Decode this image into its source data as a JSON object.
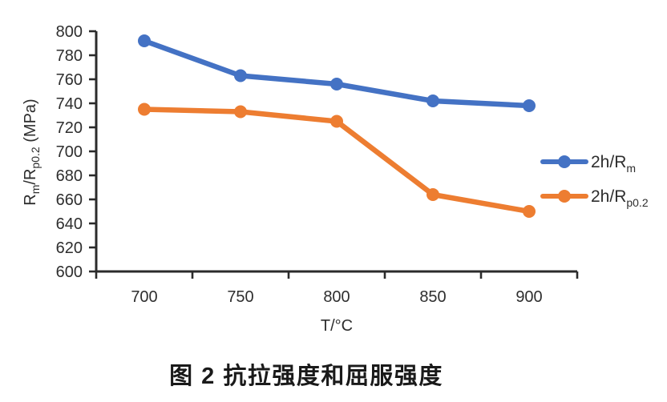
{
  "figure_caption": "图 2 抗拉强度和屈服强度",
  "chart_data": {
    "type": "line",
    "title": "图 2 抗拉强度和屈服强度",
    "xlabel": "T/°C",
    "ylabel": "Rm/Rp0.2 (MPa)",
    "ylabel_runs": [
      {
        "t": "R"
      },
      {
        "t": "m",
        "sub": true
      },
      {
        "t": "/R"
      },
      {
        "t": "p0.2",
        "sub": true
      },
      {
        "t": " (MPa)"
      }
    ],
    "x_categories": [
      700,
      750,
      800,
      850,
      900
    ],
    "x_tick_labels": [
      "700",
      "750",
      "800",
      "850",
      "900"
    ],
    "y_tick_labels": [
      "600",
      "620",
      "640",
      "660",
      "680",
      "700",
      "720",
      "740",
      "760",
      "780",
      "800"
    ],
    "ylim": [
      600,
      800
    ],
    "ytick_step": 20,
    "grid": false,
    "axis_color": "#2b2b2b",
    "tick_label_color": "#2e2e2e",
    "legend_position": "right-middle",
    "series": [
      {
        "name": "2h/Rm",
        "name_runs": [
          {
            "t": "2h/R"
          },
          {
            "t": "m",
            "sub": true
          }
        ],
        "color": "#4472C4",
        "values": [
          792,
          763,
          756,
          742,
          738
        ]
      },
      {
        "name": "2h/Rp0.2",
        "name_runs": [
          {
            "t": "2h/R"
          },
          {
            "t": "p0.2",
            "sub": true
          }
        ],
        "color": "#ED7D31",
        "values": [
          735,
          733,
          725,
          664,
          650
        ]
      }
    ]
  }
}
